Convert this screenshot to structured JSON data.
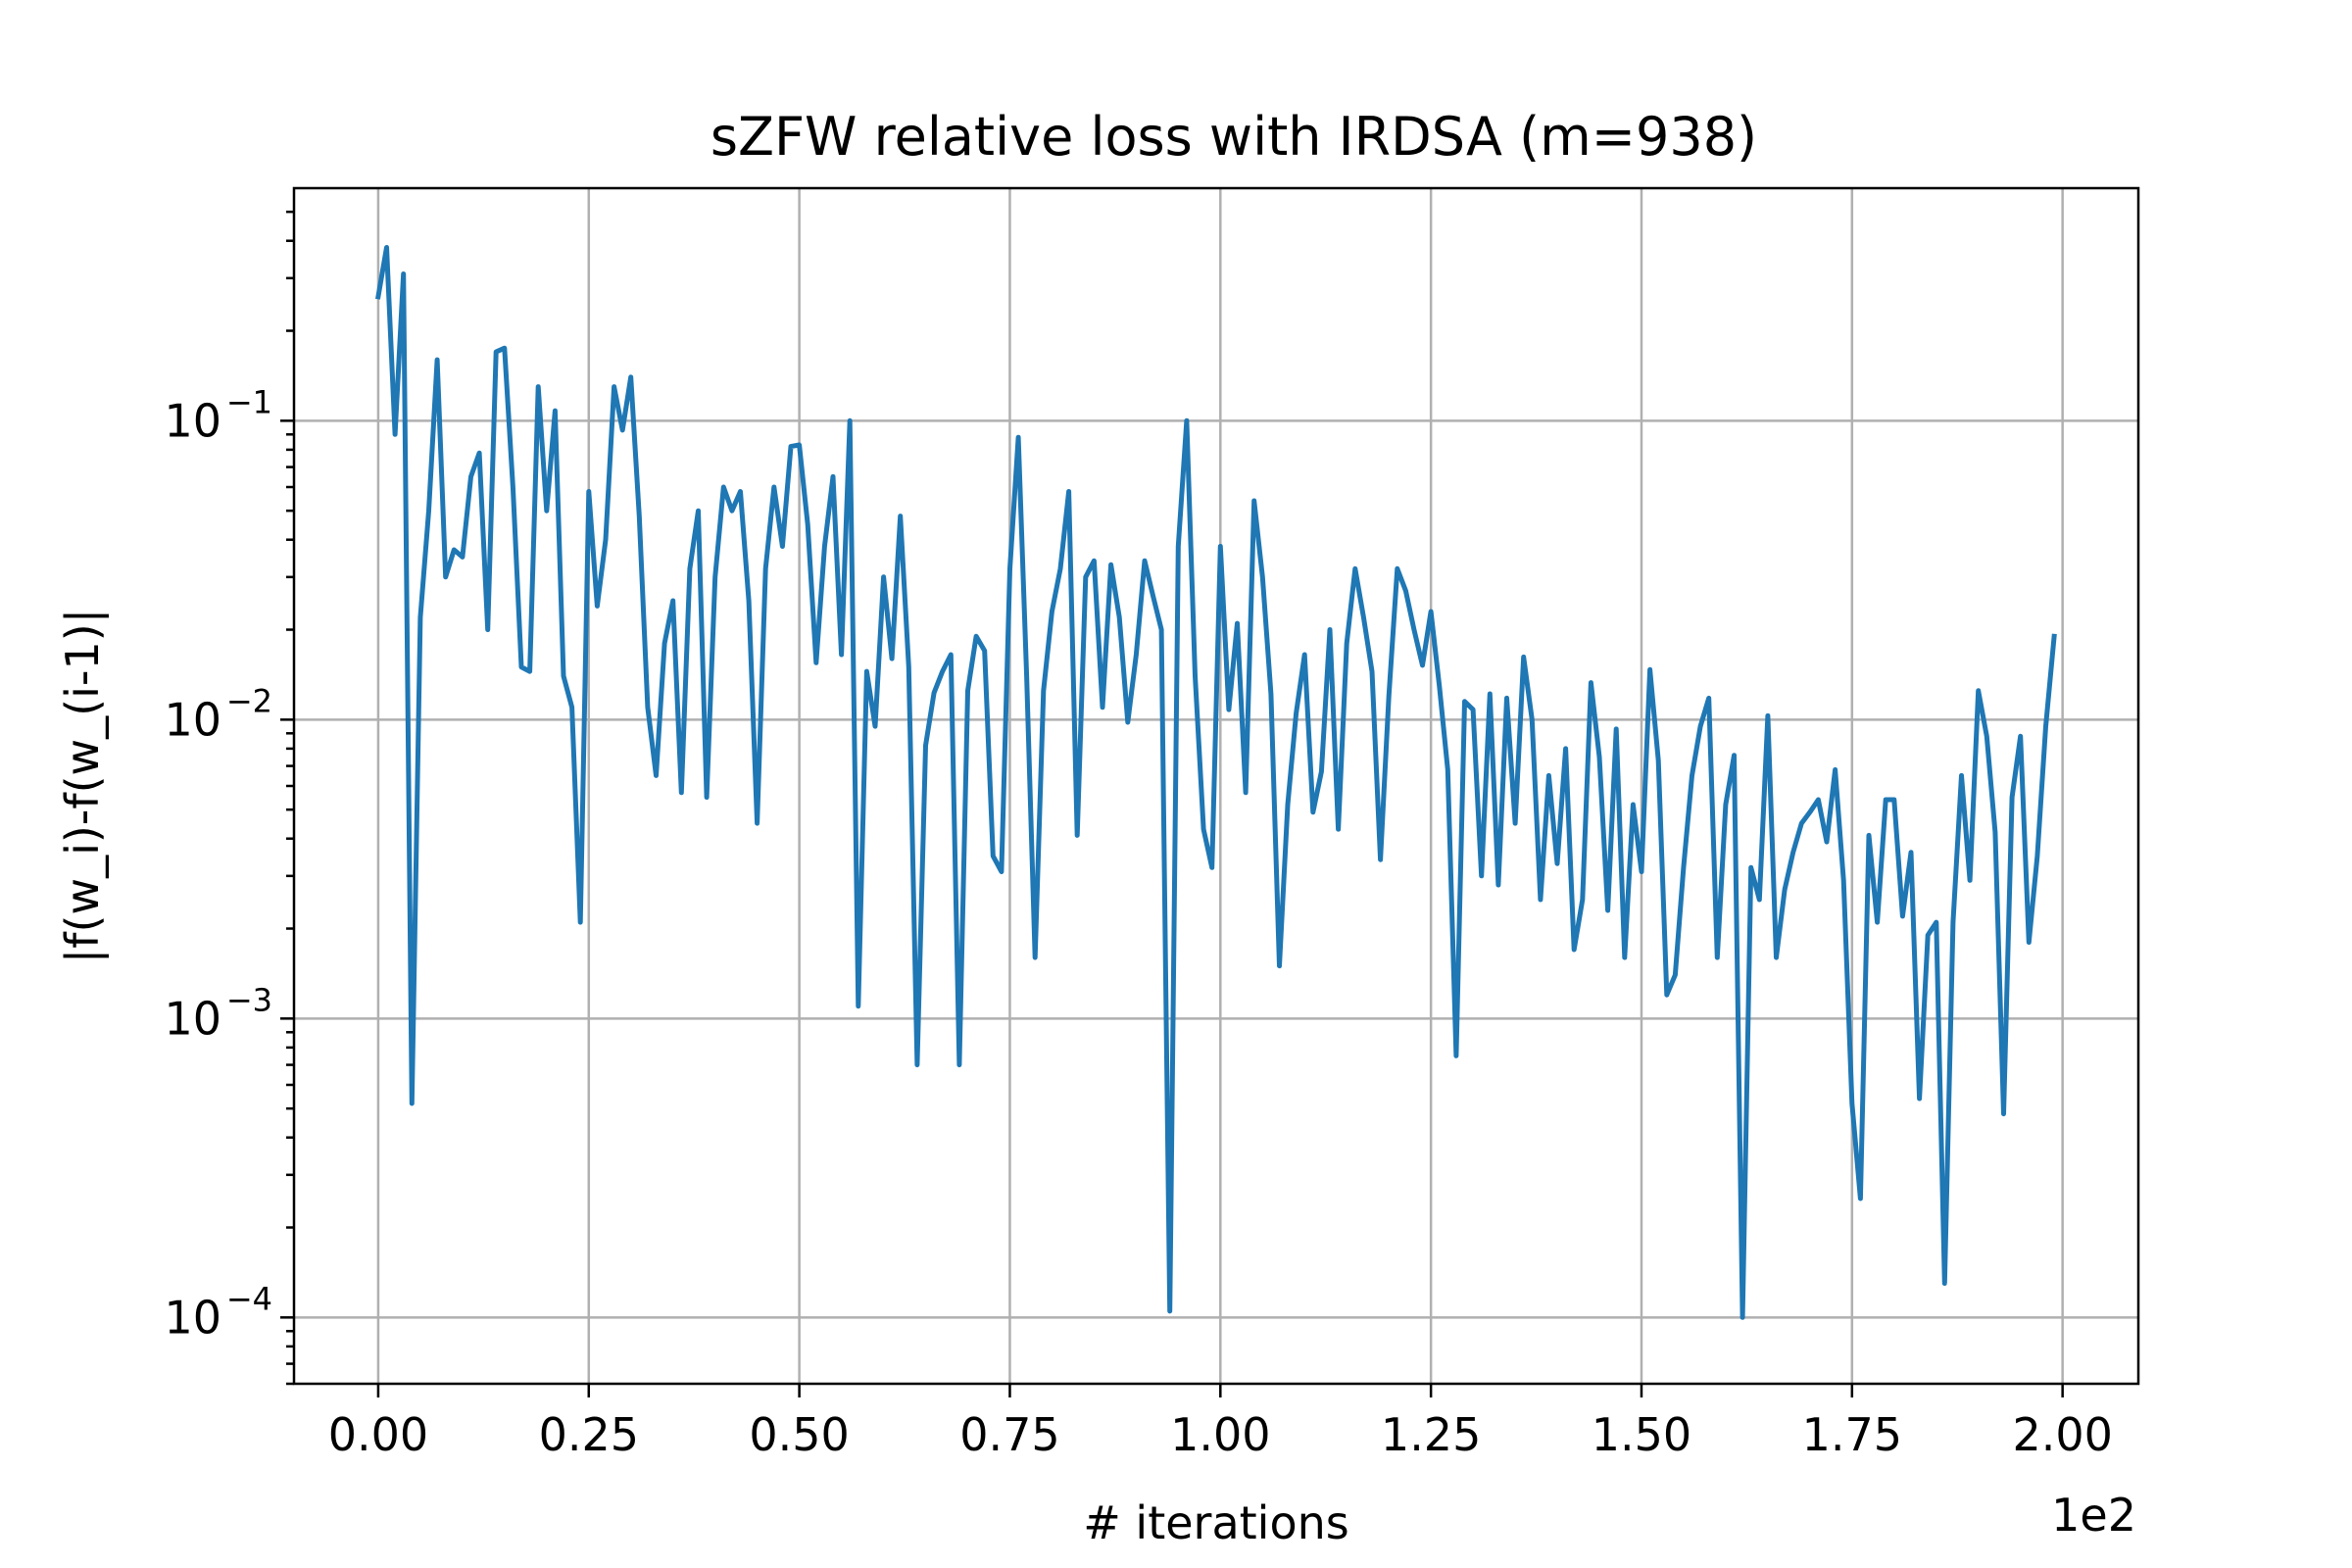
{
  "chart_data": {
    "type": "line",
    "title": "sZFW relative loss with IRDSA (m=938)",
    "xlabel": "# iterations",
    "ylabel": "|f(w_i)-f(w_(i-1)|",
    "x_offset_label": "1e2",
    "y_scale": "log",
    "grid": true,
    "xlim": [
      -10,
      209
    ],
    "ylim": [
      6e-05,
      0.6
    ],
    "x_ticks": [
      0,
      25,
      50,
      75,
      100,
      125,
      150,
      175,
      200
    ],
    "x_tick_labels": [
      "0.00",
      "0.25",
      "0.50",
      "0.75",
      "1.00",
      "1.25",
      "1.50",
      "1.75",
      "2.00"
    ],
    "y_ticks": [
      0.0001,
      0.001,
      0.01,
      0.1
    ],
    "y_tick_labels": [
      {
        "base": "10",
        "exp": "−4"
      },
      {
        "base": "10",
        "exp": "−3"
      },
      {
        "base": "10",
        "exp": "−2"
      },
      {
        "base": "10",
        "exp": "−1"
      }
    ],
    "series": [
      {
        "color": "#1f77b4",
        "x_start": 0,
        "x_step": 1,
        "values": [
          0.26,
          0.38,
          0.09,
          0.31,
          0.00052,
          0.022,
          0.05,
          0.16,
          0.03,
          0.037,
          0.035,
          0.065,
          0.078,
          0.02,
          0.17,
          0.175,
          0.06,
          0.015,
          0.0145,
          0.13,
          0.05,
          0.108,
          0.014,
          0.011,
          0.0021,
          0.058,
          0.024,
          0.04,
          0.13,
          0.093,
          0.14,
          0.048,
          0.011,
          0.0065,
          0.018,
          0.025,
          0.0057,
          0.032,
          0.05,
          0.0055,
          0.03,
          0.06,
          0.05,
          0.058,
          0.025,
          0.0045,
          0.032,
          0.06,
          0.038,
          0.082,
          0.083,
          0.045,
          0.0155,
          0.038,
          0.065,
          0.0165,
          0.1,
          0.0011,
          0.0145,
          0.0095,
          0.03,
          0.016,
          0.048,
          0.015,
          0.0007,
          0.0082,
          0.0123,
          0.0145,
          0.0165,
          0.0007,
          0.0125,
          0.019,
          0.017,
          0.0035,
          0.0031,
          0.032,
          0.088,
          0.014,
          0.0016,
          0.0125,
          0.023,
          0.032,
          0.058,
          0.0041,
          0.03,
          0.034,
          0.011,
          0.033,
          0.022,
          0.0098,
          0.0165,
          0.034,
          0.026,
          0.02,
          0.000105,
          0.038,
          0.1,
          0.014,
          0.0043,
          0.0032,
          0.038,
          0.0108,
          0.021,
          0.0057,
          0.054,
          0.03,
          0.0122,
          0.0015,
          0.0052,
          0.0105,
          0.0165,
          0.0049,
          0.0067,
          0.02,
          0.0043,
          0.018,
          0.032,
          0.022,
          0.0145,
          0.0034,
          0.012,
          0.032,
          0.027,
          0.02,
          0.0152,
          0.023,
          0.013,
          0.0068,
          0.00075,
          0.0115,
          0.0108,
          0.003,
          0.0122,
          0.0028,
          0.0118,
          0.0045,
          0.0162,
          0.01,
          0.0025,
          0.0065,
          0.0033,
          0.008,
          0.0017,
          0.0025,
          0.0133,
          0.0075,
          0.0023,
          0.0093,
          0.0016,
          0.0052,
          0.0031,
          0.0147,
          0.0073,
          0.0012,
          0.0014,
          0.0032,
          0.0065,
          0.0095,
          0.0118,
          0.0016,
          0.0052,
          0.0076,
          0.0001,
          0.0032,
          0.0025,
          0.0103,
          0.0016,
          0.0027,
          0.0036,
          0.0045,
          0.0049,
          0.0054,
          0.0039,
          0.0068,
          0.0029,
          0.00052,
          0.00025,
          0.0041,
          0.0021,
          0.0054,
          0.0054,
          0.0022,
          0.0036,
          0.00054,
          0.0019,
          0.0021,
          0.00013,
          0.0021,
          0.0065,
          0.0029,
          0.0125,
          0.0088,
          0.0042,
          0.00048,
          0.0055,
          0.0088,
          0.0018,
          0.0035,
          0.0095,
          0.019
        ]
      }
    ]
  }
}
